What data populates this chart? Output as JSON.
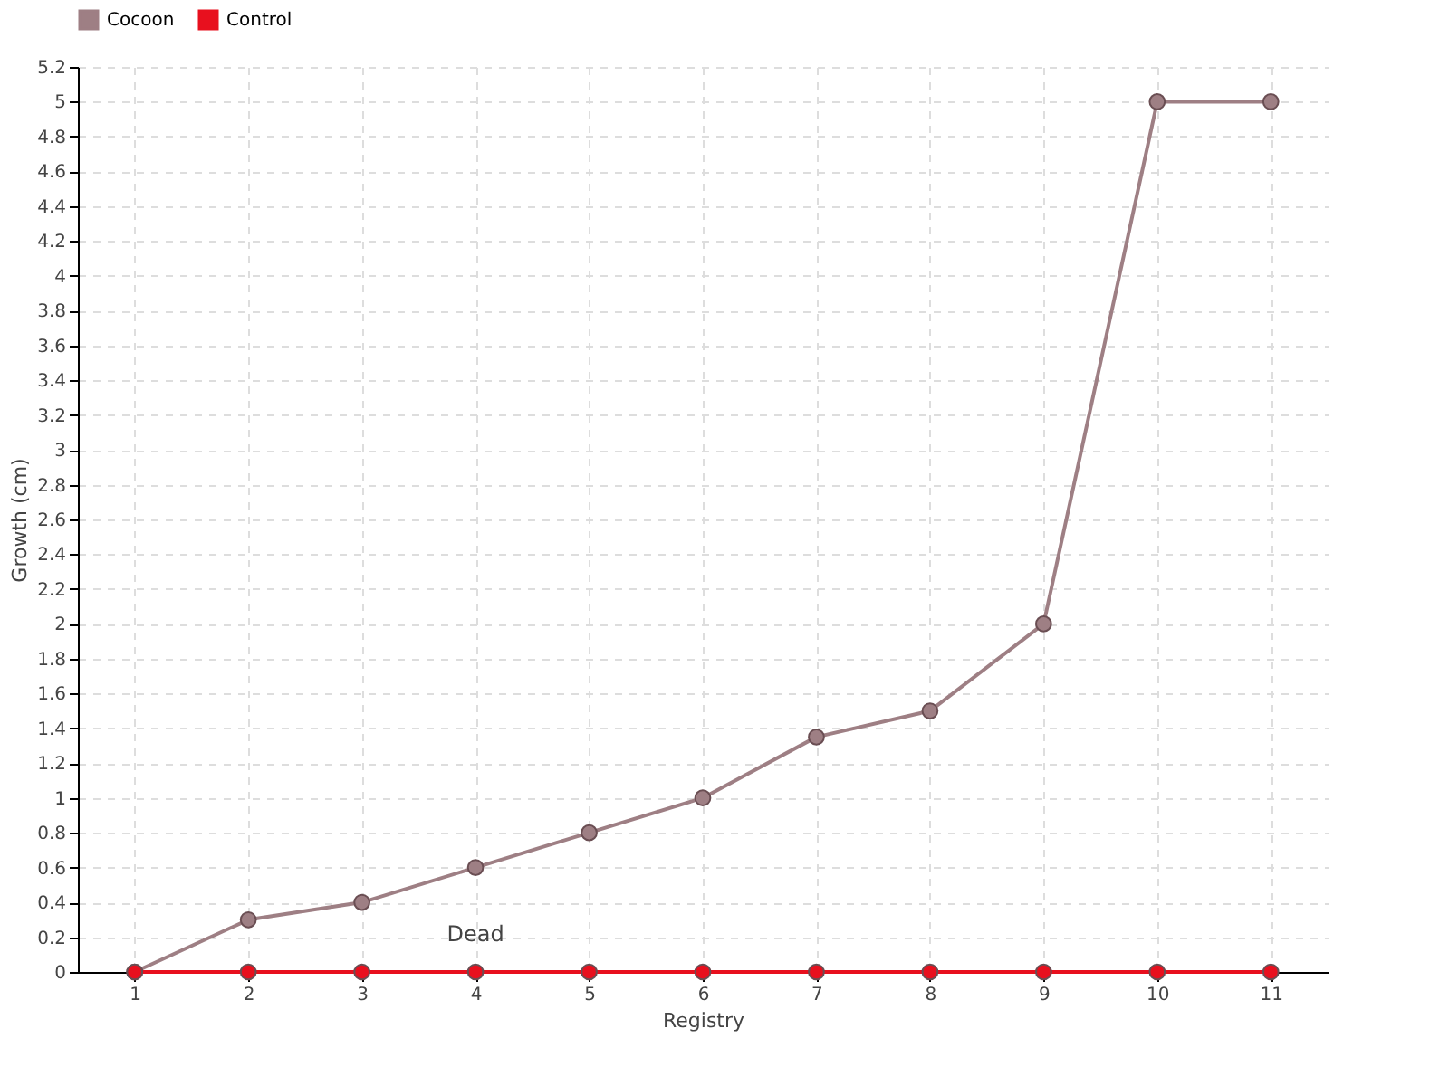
{
  "chart_data": {
    "type": "line",
    "xlabel": "Registry",
    "ylabel": "Growth (cm)",
    "categories": [
      "1",
      "2",
      "3",
      "4",
      "5",
      "6",
      "7",
      "8",
      "9",
      "10",
      "11"
    ],
    "series": [
      {
        "name": "Cocoon",
        "color": "#9e7f84",
        "values": [
          0,
          0.3,
          0.4,
          0.6,
          0.8,
          1,
          1.35,
          1.5,
          2,
          5,
          5
        ]
      },
      {
        "name": "Control",
        "color": "#e8101e",
        "values": [
          0,
          0,
          0,
          0,
          0,
          0,
          0,
          0,
          0,
          0,
          0
        ]
      }
    ],
    "ylim": [
      0,
      5.2
    ],
    "yticks": [
      0,
      0.2,
      0.4,
      0.6,
      0.8,
      1,
      1.2,
      1.4,
      1.6,
      1.8,
      2,
      2.2,
      2.4,
      2.6,
      2.8,
      3,
      3.2,
      3.4,
      3.6,
      3.8,
      4,
      4.2,
      4.4,
      4.6,
      4.8,
      5,
      5.2
    ],
    "annotations": [
      {
        "text": "Dead",
        "x": "4",
        "y": 0
      }
    ],
    "grid": true,
    "legend": "top left",
    "marker": "circle",
    "line_style": "solid"
  }
}
